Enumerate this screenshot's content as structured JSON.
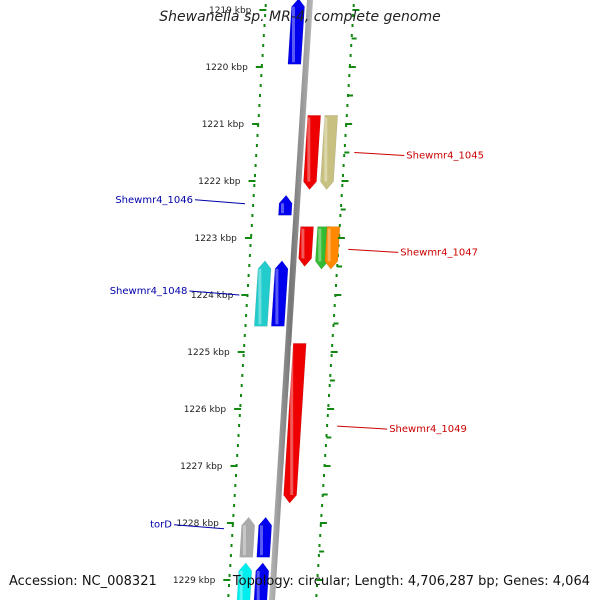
{
  "title": "Shewanella sp. MR-4, complete genome",
  "footer": {
    "accession": "Accession: NC_008321",
    "stats": "Topology: circular; Length: 4,706,287 bp; Genes: 4,064"
  },
  "colors": {
    "dots": "#118811",
    "backbone": "#888888",
    "forward_label": "#cc0000",
    "reverse_label": "#0000aa"
  },
  "axis": {
    "unit": "kbp",
    "ticks": [
      {
        "kbp": 1219,
        "label": "1219 kbp"
      },
      {
        "kbp": 1220,
        "label": "1220 kbp"
      },
      {
        "kbp": 1221,
        "label": "1221 kbp"
      },
      {
        "kbp": 1222,
        "label": "1222 kbp"
      },
      {
        "kbp": 1223,
        "label": "1223 kbp"
      },
      {
        "kbp": 1224,
        "label": "1224 kbp"
      },
      {
        "kbp": 1225,
        "label": "1225 kbp"
      },
      {
        "kbp": 1226,
        "label": "1226 kbp"
      },
      {
        "kbp": 1227,
        "label": "1227 kbp"
      },
      {
        "kbp": 1228,
        "label": "1228 kbp"
      },
      {
        "kbp": 1229,
        "label": "1229 kbp"
      }
    ]
  },
  "genes": [
    {
      "strand": "-",
      "track": 1,
      "start": 1218.8,
      "end": 1219.95,
      "color": "#0000ee",
      "label": ""
    },
    {
      "strand": "+",
      "track": 1,
      "start": 1220.85,
      "end": 1222.15,
      "color": "#ee0000",
      "label": "Shewmr4_1045",
      "label_at": 1221.5
    },
    {
      "strand": "+",
      "track": 2,
      "start": 1220.85,
      "end": 1222.15,
      "color": "#c8c080",
      "label": ""
    },
    {
      "strand": "-",
      "track": 1,
      "start": 1222.25,
      "end": 1222.6,
      "color": "#0000ee",
      "label": "Shewmr4_1046",
      "label_at": 1222.4
    },
    {
      "strand": "+",
      "track": 1,
      "start": 1222.8,
      "end": 1223.5,
      "color": "#ee0000",
      "label": ""
    },
    {
      "strand": "+",
      "track": 2,
      "start": 1222.8,
      "end": 1223.55,
      "color": "#33bb33",
      "label": ""
    },
    {
      "strand": "+",
      "track": 2.55,
      "start": 1222.8,
      "end": 1223.55,
      "color": "#ff8800",
      "label": "Shewmr4_1047",
      "label_at": 1223.2
    },
    {
      "strand": "-",
      "track": 2,
      "start": 1223.4,
      "end": 1224.55,
      "color": "#22cccc",
      "label": "Shewmr4_1048",
      "label_at": 1224.0
    },
    {
      "strand": "-",
      "track": 1,
      "start": 1223.4,
      "end": 1224.55,
      "color": "#0000ee",
      "label": ""
    },
    {
      "strand": "+",
      "track": 1,
      "start": 1224.85,
      "end": 1227.65,
      "color": "#ee0000",
      "label": "Shewmr4_1049",
      "label_at": 1226.3
    },
    {
      "strand": "-",
      "track": 2,
      "start": 1227.9,
      "end": 1228.6,
      "color": "#aaaaaa",
      "label": ""
    },
    {
      "strand": "-",
      "track": 1,
      "start": 1227.9,
      "end": 1228.6,
      "color": "#0000ee",
      "label": "torD",
      "label_at": 1228.1
    },
    {
      "strand": "-",
      "track": 2,
      "start": 1228.7,
      "end": 1229.6,
      "color": "#00eeee",
      "label": ""
    },
    {
      "strand": "-",
      "track": 1,
      "start": 1228.7,
      "end": 1229.6,
      "color": "#0000ee",
      "label": ""
    }
  ]
}
